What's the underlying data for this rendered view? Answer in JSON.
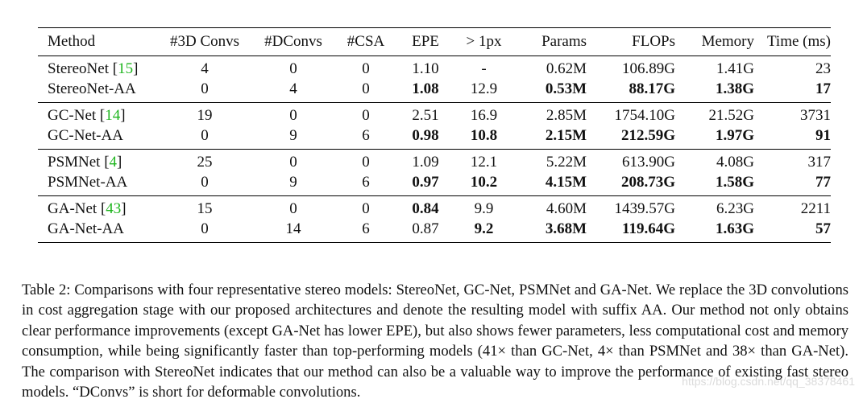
{
  "table": {
    "headers": [
      "Method",
      "#3D Convs",
      "#DConvs",
      "#CSA",
      "EPE",
      "> 1px",
      "Params",
      "FLOPs",
      "Memory",
      "Time (ms)"
    ],
    "groups": [
      {
        "rows": [
          {
            "method": "StereoNet",
            "cite": "15",
            "conv3d": "4",
            "dconvs": "0",
            "csa": "0",
            "epe": "1.10",
            "gt1px": "-",
            "params": "0.62M",
            "flops": "106.89G",
            "memory": "1.41G",
            "time": "23"
          },
          {
            "method": "StereoNet-AA",
            "cite": "",
            "conv3d": "0",
            "dconvs": "4",
            "csa": "0",
            "epe": "1.08",
            "gt1px": "12.9",
            "params": "0.53M",
            "flops": "88.17G",
            "memory": "1.38G",
            "time": "17"
          }
        ]
      },
      {
        "rows": [
          {
            "method": "GC-Net",
            "cite": "14",
            "conv3d": "19",
            "dconvs": "0",
            "csa": "0",
            "epe": "2.51",
            "gt1px": "16.9",
            "params": "2.85M",
            "flops": "1754.10G",
            "memory": "21.52G",
            "time": "3731"
          },
          {
            "method": "GC-Net-AA",
            "cite": "",
            "conv3d": "0",
            "dconvs": "9",
            "csa": "6",
            "epe": "0.98",
            "gt1px": "10.8",
            "params": "2.15M",
            "flops": "212.59G",
            "memory": "1.97G",
            "time": "91"
          }
        ]
      },
      {
        "rows": [
          {
            "method": "PSMNet",
            "cite": "4",
            "conv3d": "25",
            "dconvs": "0",
            "csa": "0",
            "epe": "1.09",
            "gt1px": "12.1",
            "params": "5.22M",
            "flops": "613.90G",
            "memory": "4.08G",
            "time": "317"
          },
          {
            "method": "PSMNet-AA",
            "cite": "",
            "conv3d": "0",
            "dconvs": "9",
            "csa": "6",
            "epe": "0.97",
            "gt1px": "10.2",
            "params": "4.15M",
            "flops": "208.73G",
            "memory": "1.58G",
            "time": "77"
          }
        ]
      },
      {
        "rows": [
          {
            "method": "GA-Net",
            "cite": "43",
            "conv3d": "15",
            "dconvs": "0",
            "csa": "0",
            "epe": "0.84",
            "gt1px": "9.9",
            "params": "4.60M",
            "flops": "1439.57G",
            "memory": "6.23G",
            "time": "2211"
          },
          {
            "method": "GA-Net-AA",
            "cite": "",
            "conv3d": "0",
            "dconvs": "14",
            "csa": "6",
            "epe": "0.87",
            "gt1px": "9.2",
            "params": "3.68M",
            "flops": "119.64G",
            "memory": "1.63G",
            "time": "57"
          }
        ]
      }
    ]
  },
  "caption": "Table 2: Comparisons with four representative stereo models: StereoNet, GC-Net, PSMNet and GA-Net. We replace the 3D convolutions in cost aggregation stage with our proposed architectures and denote the resulting model with suffix AA. Our method not only obtains clear performance improvements (except GA-Net has lower EPE), but also shows fewer parameters, less computational cost and memory consumption, while being significantly faster than top-performing models (41× than GC-Net, 4× than PSMNet and 38× than GA-Net). The comparison with StereoNet indicates that our method can also be a valuable way to improve the performance of existing fast stereo models. “DConvs” is short for deformable convolutions.",
  "watermark": "https://blog.csdn.net/qq_38378461",
  "colors": {
    "citation": "#1fb51f"
  }
}
